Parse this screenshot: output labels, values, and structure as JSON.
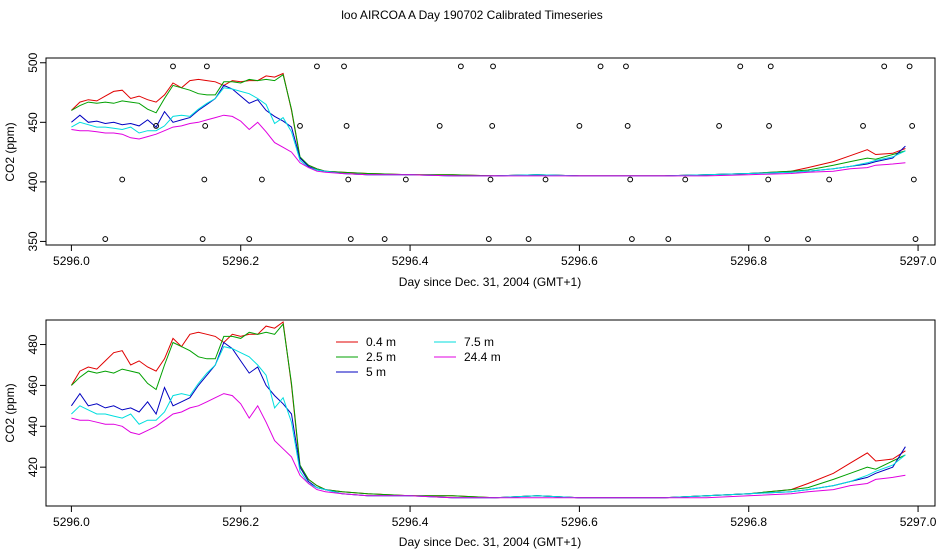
{
  "figure_title": "loo AIRCOA A  Day 190702  Calibrated Timeseries",
  "colors": {
    "s04": "#e00000",
    "s25": "#00a000",
    "s5": "#0000c0",
    "s75": "#00dede",
    "s244": "#e000e0",
    "axis": "#000000"
  },
  "chart_data": [
    {
      "type": "scatter+line",
      "title": "",
      "xlabel": "Day since Dec. 31, 2004 (GMT+1)",
      "ylabel": "CO2 (ppm)",
      "xlim": [
        5295.97,
        5297.02
      ],
      "ylim": [
        347,
        504
      ],
      "xticks": [
        "5296.0",
        "5296.2",
        "5296.4",
        "5296.6",
        "5296.8",
        "5297.0"
      ],
      "yticks": [
        "350",
        "400",
        "450",
        "500"
      ],
      "xtick_values": [
        5296.0,
        5296.2,
        5296.4,
        5296.6,
        5296.8,
        5297.0
      ],
      "ytick_values": [
        350,
        400,
        450,
        500
      ],
      "calibration_points": [
        [
          5296.04,
          352
        ],
        [
          5296.06,
          402
        ],
        [
          5296.1,
          447
        ],
        [
          5296.12,
          497
        ],
        [
          5296.155,
          352
        ],
        [
          5296.157,
          402
        ],
        [
          5296.158,
          447
        ],
        [
          5296.16,
          497
        ],
        [
          5296.21,
          352
        ],
        [
          5296.225,
          402
        ],
        [
          5296.27,
          447
        ],
        [
          5296.29,
          497
        ],
        [
          5296.322,
          497
        ],
        [
          5296.325,
          447
        ],
        [
          5296.327,
          402
        ],
        [
          5296.33,
          352
        ],
        [
          5296.37,
          352
        ],
        [
          5296.395,
          402
        ],
        [
          5296.435,
          447
        ],
        [
          5296.46,
          497
        ],
        [
          5296.493,
          352
        ],
        [
          5296.495,
          402
        ],
        [
          5296.497,
          447
        ],
        [
          5296.498,
          497
        ],
        [
          5296.54,
          352
        ],
        [
          5296.56,
          402
        ],
        [
          5296.6,
          447
        ],
        [
          5296.625,
          497
        ],
        [
          5296.655,
          497
        ],
        [
          5296.657,
          447
        ],
        [
          5296.66,
          402
        ],
        [
          5296.662,
          352
        ],
        [
          5296.705,
          352
        ],
        [
          5296.725,
          402
        ],
        [
          5296.765,
          447
        ],
        [
          5296.79,
          497
        ],
        [
          5296.822,
          352
        ],
        [
          5296.823,
          402
        ],
        [
          5296.824,
          447
        ],
        [
          5296.826,
          497
        ],
        [
          5296.87,
          352
        ],
        [
          5296.895,
          402
        ],
        [
          5296.935,
          447
        ],
        [
          5296.96,
          497
        ],
        [
          5296.99,
          497
        ],
        [
          5296.993,
          447
        ],
        [
          5296.995,
          402
        ],
        [
          5296.997,
          352
        ]
      ]
    },
    {
      "type": "line",
      "title": "",
      "xlabel": "Day since Dec. 31, 2004 (GMT+1)",
      "ylabel": "CO2 (ppm)",
      "xlim": [
        5295.97,
        5297.02
      ],
      "ylim": [
        401,
        492
      ],
      "xticks": [
        "5296.0",
        "5296.2",
        "5296.4",
        "5296.6",
        "5296.8",
        "5297.0"
      ],
      "yticks": [
        "420",
        "440",
        "460",
        "480"
      ],
      "xtick_values": [
        5296.0,
        5296.2,
        5296.4,
        5296.6,
        5296.8,
        5297.0
      ],
      "ytick_values": [
        420,
        440,
        460,
        480
      ],
      "legend": [
        {
          "label": "0.4 m",
          "key": "s04"
        },
        {
          "label": "2.5 m",
          "key": "s25"
        },
        {
          "label": "5 m",
          "key": "s5"
        },
        {
          "label": "7.5 m",
          "key": "s75"
        },
        {
          "label": "24.4 m",
          "key": "s244"
        }
      ]
    }
  ],
  "series": [
    {
      "name": "0.4 m",
      "key": "s04",
      "points": [
        [
          5296.0,
          460
        ],
        [
          5296.01,
          467
        ],
        [
          5296.02,
          469
        ],
        [
          5296.03,
          468
        ],
        [
          5296.04,
          472
        ],
        [
          5296.05,
          476
        ],
        [
          5296.06,
          477
        ],
        [
          5296.07,
          470
        ],
        [
          5296.08,
          472
        ],
        [
          5296.09,
          469
        ],
        [
          5296.1,
          467
        ],
        [
          5296.11,
          473
        ],
        [
          5296.12,
          483
        ],
        [
          5296.13,
          479
        ],
        [
          5296.14,
          485
        ],
        [
          5296.15,
          486
        ],
        [
          5296.16,
          485
        ],
        [
          5296.17,
          484
        ],
        [
          5296.18,
          481
        ],
        [
          5296.19,
          485
        ],
        [
          5296.2,
          484
        ],
        [
          5296.21,
          485
        ],
        [
          5296.22,
          485
        ],
        [
          5296.23,
          489
        ],
        [
          5296.24,
          488
        ],
        [
          5296.25,
          491
        ],
        [
          5296.26,
          460
        ],
        [
          5296.27,
          420
        ],
        [
          5296.28,
          414
        ],
        [
          5296.29,
          411
        ],
        [
          5296.3,
          409
        ],
        [
          5296.32,
          408
        ],
        [
          5296.35,
          407
        ],
        [
          5296.4,
          406
        ],
        [
          5296.45,
          406
        ],
        [
          5296.5,
          405
        ],
        [
          5296.55,
          406
        ],
        [
          5296.6,
          405
        ],
        [
          5296.65,
          405
        ],
        [
          5296.7,
          405
        ],
        [
          5296.75,
          406
        ],
        [
          5296.8,
          407
        ],
        [
          5296.85,
          409
        ],
        [
          5296.87,
          412
        ],
        [
          5296.9,
          417
        ],
        [
          5296.92,
          422
        ],
        [
          5296.94,
          427
        ],
        [
          5296.95,
          423
        ],
        [
          5296.97,
          424
        ],
        [
          5296.985,
          428
        ]
      ]
    },
    {
      "name": "2.5 m",
      "key": "s25",
      "points": [
        [
          5296.0,
          460
        ],
        [
          5296.01,
          464
        ],
        [
          5296.02,
          467
        ],
        [
          5296.03,
          466
        ],
        [
          5296.04,
          467
        ],
        [
          5296.05,
          466
        ],
        [
          5296.06,
          468
        ],
        [
          5296.07,
          467
        ],
        [
          5296.08,
          466
        ],
        [
          5296.09,
          461
        ],
        [
          5296.1,
          458
        ],
        [
          5296.11,
          470
        ],
        [
          5296.12,
          481
        ],
        [
          5296.13,
          479
        ],
        [
          5296.14,
          477
        ],
        [
          5296.15,
          474
        ],
        [
          5296.16,
          473
        ],
        [
          5296.17,
          473
        ],
        [
          5296.18,
          484
        ],
        [
          5296.19,
          484
        ],
        [
          5296.2,
          483
        ],
        [
          5296.21,
          486
        ],
        [
          5296.22,
          485
        ],
        [
          5296.23,
          486
        ],
        [
          5296.24,
          485
        ],
        [
          5296.25,
          490
        ],
        [
          5296.26,
          461
        ],
        [
          5296.27,
          421
        ],
        [
          5296.28,
          414
        ],
        [
          5296.29,
          411
        ],
        [
          5296.3,
          409
        ],
        [
          5296.32,
          408
        ],
        [
          5296.35,
          407
        ],
        [
          5296.4,
          406
        ],
        [
          5296.45,
          406
        ],
        [
          5296.5,
          405
        ],
        [
          5296.55,
          406
        ],
        [
          5296.6,
          405
        ],
        [
          5296.65,
          405
        ],
        [
          5296.7,
          405
        ],
        [
          5296.75,
          406
        ],
        [
          5296.8,
          407
        ],
        [
          5296.85,
          409
        ],
        [
          5296.87,
          410
        ],
        [
          5296.9,
          414
        ],
        [
          5296.92,
          417
        ],
        [
          5296.94,
          420
        ],
        [
          5296.95,
          419
        ],
        [
          5296.97,
          423
        ],
        [
          5296.985,
          426
        ]
      ]
    },
    {
      "name": "5 m",
      "key": "s5",
      "points": [
        [
          5296.0,
          450
        ],
        [
          5296.01,
          456
        ],
        [
          5296.02,
          450
        ],
        [
          5296.03,
          451
        ],
        [
          5296.04,
          449
        ],
        [
          5296.05,
          450
        ],
        [
          5296.06,
          448
        ],
        [
          5296.07,
          449
        ],
        [
          5296.08,
          447
        ],
        [
          5296.09,
          452
        ],
        [
          5296.1,
          446
        ],
        [
          5296.11,
          459
        ],
        [
          5296.12,
          450
        ],
        [
          5296.13,
          452
        ],
        [
          5296.14,
          454
        ],
        [
          5296.15,
          460
        ],
        [
          5296.16,
          465
        ],
        [
          5296.17,
          470
        ],
        [
          5296.18,
          481
        ],
        [
          5296.19,
          478
        ],
        [
          5296.2,
          472
        ],
        [
          5296.21,
          466
        ],
        [
          5296.22,
          469
        ],
        [
          5296.23,
          460
        ],
        [
          5296.24,
          455
        ],
        [
          5296.25,
          451
        ],
        [
          5296.26,
          446
        ],
        [
          5296.27,
          420
        ],
        [
          5296.28,
          413
        ],
        [
          5296.29,
          410
        ],
        [
          5296.3,
          409
        ],
        [
          5296.32,
          407
        ],
        [
          5296.35,
          406
        ],
        [
          5296.4,
          406
        ],
        [
          5296.45,
          405
        ],
        [
          5296.5,
          405
        ],
        [
          5296.55,
          406
        ],
        [
          5296.6,
          405
        ],
        [
          5296.65,
          405
        ],
        [
          5296.7,
          405
        ],
        [
          5296.75,
          406
        ],
        [
          5296.8,
          407
        ],
        [
          5296.85,
          408
        ],
        [
          5296.87,
          409
        ],
        [
          5296.9,
          411
        ],
        [
          5296.92,
          413
        ],
        [
          5296.94,
          415
        ],
        [
          5296.95,
          417
        ],
        [
          5296.97,
          420
        ],
        [
          5296.985,
          430
        ]
      ]
    },
    {
      "name": "7.5 m",
      "key": "s75",
      "points": [
        [
          5296.0,
          446
        ],
        [
          5296.01,
          450
        ],
        [
          5296.02,
          448
        ],
        [
          5296.03,
          446
        ],
        [
          5296.04,
          446
        ],
        [
          5296.05,
          445
        ],
        [
          5296.06,
          444
        ],
        [
          5296.07,
          446
        ],
        [
          5296.08,
          441
        ],
        [
          5296.09,
          443
        ],
        [
          5296.1,
          443
        ],
        [
          5296.11,
          447
        ],
        [
          5296.12,
          455
        ],
        [
          5296.13,
          456
        ],
        [
          5296.14,
          455
        ],
        [
          5296.15,
          461
        ],
        [
          5296.16,
          466
        ],
        [
          5296.17,
          470
        ],
        [
          5296.18,
          479
        ],
        [
          5296.19,
          478
        ],
        [
          5296.2,
          476
        ],
        [
          5296.21,
          474
        ],
        [
          5296.22,
          470
        ],
        [
          5296.23,
          465
        ],
        [
          5296.24,
          449
        ],
        [
          5296.25,
          454
        ],
        [
          5296.26,
          442
        ],
        [
          5296.27,
          418
        ],
        [
          5296.28,
          412
        ],
        [
          5296.29,
          410
        ],
        [
          5296.3,
          409
        ],
        [
          5296.32,
          407
        ],
        [
          5296.35,
          406
        ],
        [
          5296.4,
          406
        ],
        [
          5296.45,
          405
        ],
        [
          5296.5,
          405
        ],
        [
          5296.55,
          406
        ],
        [
          5296.6,
          405
        ],
        [
          5296.65,
          405
        ],
        [
          5296.7,
          405
        ],
        [
          5296.75,
          406
        ],
        [
          5296.8,
          407
        ],
        [
          5296.85,
          408
        ],
        [
          5296.87,
          409
        ],
        [
          5296.9,
          411
        ],
        [
          5296.92,
          413
        ],
        [
          5296.94,
          416
        ],
        [
          5296.95,
          418
        ],
        [
          5296.97,
          421
        ],
        [
          5296.985,
          426
        ]
      ]
    },
    {
      "name": "24.4 m",
      "key": "s244",
      "points": [
        [
          5296.0,
          444
        ],
        [
          5296.01,
          443
        ],
        [
          5296.02,
          443
        ],
        [
          5296.03,
          442
        ],
        [
          5296.04,
          441
        ],
        [
          5296.05,
          441
        ],
        [
          5296.06,
          440
        ],
        [
          5296.07,
          437
        ],
        [
          5296.08,
          436
        ],
        [
          5296.09,
          438
        ],
        [
          5296.1,
          440
        ],
        [
          5296.11,
          443
        ],
        [
          5296.12,
          446
        ],
        [
          5296.13,
          447
        ],
        [
          5296.14,
          449
        ],
        [
          5296.15,
          450
        ],
        [
          5296.16,
          452
        ],
        [
          5296.17,
          454
        ],
        [
          5296.18,
          456
        ],
        [
          5296.19,
          455
        ],
        [
          5296.2,
          451
        ],
        [
          5296.21,
          444
        ],
        [
          5296.22,
          450
        ],
        [
          5296.23,
          442
        ],
        [
          5296.24,
          433
        ],
        [
          5296.25,
          429
        ],
        [
          5296.26,
          425
        ],
        [
          5296.27,
          416
        ],
        [
          5296.28,
          412
        ],
        [
          5296.29,
          409
        ],
        [
          5296.3,
          408
        ],
        [
          5296.32,
          407
        ],
        [
          5296.35,
          406
        ],
        [
          5296.4,
          406
        ],
        [
          5296.45,
          405
        ],
        [
          5296.5,
          405
        ],
        [
          5296.55,
          405
        ],
        [
          5296.6,
          405
        ],
        [
          5296.65,
          405
        ],
        [
          5296.7,
          405
        ],
        [
          5296.75,
          405
        ],
        [
          5296.8,
          406
        ],
        [
          5296.85,
          407
        ],
        [
          5296.87,
          408
        ],
        [
          5296.9,
          409
        ],
        [
          5296.92,
          411
        ],
        [
          5296.94,
          412
        ],
        [
          5296.95,
          414
        ],
        [
          5296.97,
          415
        ],
        [
          5296.985,
          416
        ]
      ]
    }
  ]
}
